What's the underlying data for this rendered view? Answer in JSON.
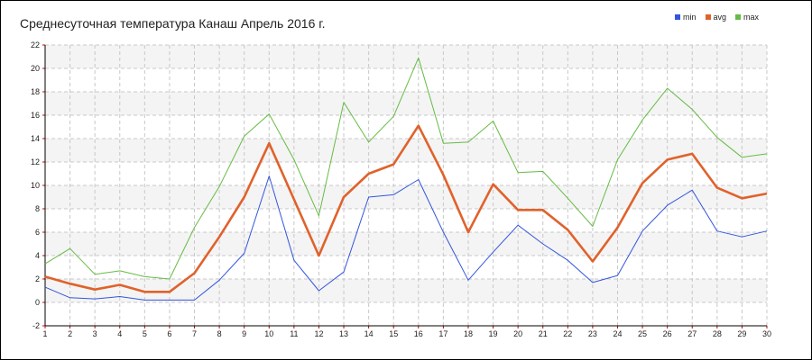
{
  "chart_data": {
    "type": "line",
    "title": "Среднесуточная температура Канаш  Апрель 2016 г.",
    "xlabel": "",
    "ylabel": "",
    "categories": [
      "1",
      "2",
      "3",
      "4",
      "5",
      "6",
      "7",
      "8",
      "9",
      "10",
      "11",
      "12",
      "13",
      "14",
      "15",
      "16",
      "17",
      "18",
      "19",
      "20",
      "21",
      "22",
      "23",
      "24",
      "25",
      "26",
      "27",
      "28",
      "29",
      "30"
    ],
    "ylim": [
      -2,
      22
    ],
    "yticks": [
      "-2",
      "0",
      "2",
      "4",
      "6",
      "8",
      "10",
      "12",
      "14",
      "16",
      "18",
      "20",
      "22"
    ],
    "grid": true,
    "legend_position": "top-right",
    "series": [
      {
        "name": "min",
        "color": "#3355dd",
        "values": [
          1.3,
          0.4,
          0.3,
          0.5,
          0.2,
          0.2,
          0.2,
          1.9,
          4.2,
          10.8,
          3.6,
          1.0,
          2.6,
          9.0,
          9.2,
          10.5,
          6.0,
          1.9,
          4.3,
          6.6,
          5.0,
          3.6,
          1.7,
          2.3,
          6.1,
          8.3,
          9.6,
          6.1,
          5.6,
          6.1
        ]
      },
      {
        "name": "avg",
        "color": "#e0622b",
        "values": [
          2.2,
          1.6,
          1.1,
          1.5,
          0.9,
          0.9,
          2.5,
          5.6,
          9.0,
          13.6,
          8.8,
          4.0,
          9.0,
          11.0,
          11.8,
          15.1,
          10.9,
          6.0,
          10.1,
          7.9,
          7.9,
          6.2,
          3.5,
          6.4,
          10.2,
          12.2,
          12.7,
          9.8,
          8.9,
          9.3
        ]
      },
      {
        "name": "max",
        "color": "#66bb44",
        "values": [
          3.3,
          4.6,
          2.4,
          2.7,
          2.2,
          2.0,
          6.4,
          9.9,
          14.2,
          16.1,
          12.2,
          7.4,
          17.1,
          13.7,
          15.9,
          20.9,
          13.6,
          13.7,
          15.5,
          11.1,
          11.2,
          8.9,
          6.5,
          12.2,
          15.6,
          18.3,
          16.5,
          14.1,
          12.4,
          12.7
        ]
      }
    ]
  }
}
